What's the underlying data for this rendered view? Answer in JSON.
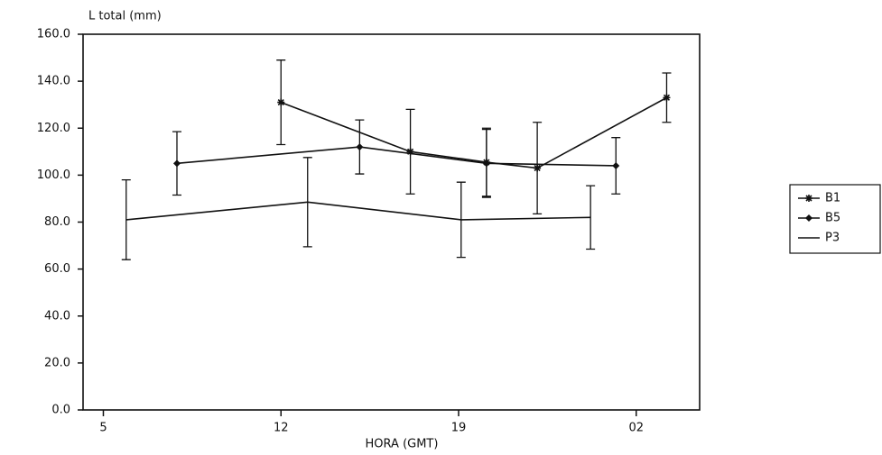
{
  "chart_data": {
    "type": "line",
    "title": "L total (mm)",
    "x_label": "HORA (GMT)",
    "xlim": [
      4.2,
      28.5
    ],
    "xticks": [
      5,
      12,
      19,
      {
        "value": 26,
        "label": "02"
      }
    ],
    "ylim": [
      0,
      160
    ],
    "yticks": [
      {
        "value": 0,
        "label": "0.0"
      },
      {
        "value": 20,
        "label": "20.0"
      },
      {
        "value": 40,
        "label": "40.0"
      },
      {
        "value": 60,
        "label": "60.0"
      },
      {
        "value": 80,
        "label": "80.0"
      },
      {
        "value": 100,
        "label": "100.0"
      },
      {
        "value": 120,
        "label": "120.0"
      },
      {
        "value": 140,
        "label": "140.0"
      },
      {
        "value": 160,
        "label": "160.0"
      }
    ],
    "grid": false,
    "legend": "right",
    "series": [
      {
        "name": "B1",
        "color": "#111111",
        "marker": "star",
        "x": [
          12.0,
          17.1,
          20.1,
          22.1,
          27.2
        ],
        "values": [
          131,
          110,
          105.5,
          103,
          133
        ],
        "errors": [
          18,
          18,
          14.5,
          19.5,
          10.5
        ]
      },
      {
        "name": "B5",
        "color": "#111111",
        "marker": "diamond",
        "x": [
          7.9,
          15.1,
          20.1,
          25.2
        ],
        "values": [
          105,
          112,
          105,
          104
        ],
        "errors": [
          13.5,
          11.5,
          14.5,
          12
        ]
      },
      {
        "name": "P3",
        "color": "#111111",
        "marker": "none",
        "x": [
          5.9,
          13.05,
          19.1,
          24.2
        ],
        "values": [
          81,
          88.5,
          81,
          82
        ],
        "errors": [
          17,
          19,
          16,
          13.5
        ]
      }
    ]
  }
}
